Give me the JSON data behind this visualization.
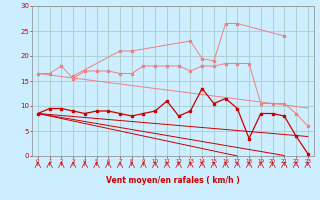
{
  "x": [
    0,
    1,
    2,
    3,
    4,
    5,
    6,
    7,
    8,
    9,
    10,
    11,
    12,
    13,
    14,
    15,
    16,
    17,
    18,
    19,
    20,
    21,
    22,
    23
  ],
  "line_light_flat": [
    16.5,
    16.5,
    18.0,
    15.5,
    17.0,
    17.0,
    17.0,
    16.5,
    16.5,
    18.0,
    18.0,
    18.0,
    18.0,
    17.0,
    18.0,
    18.0,
    18.5,
    18.5,
    18.5,
    10.5,
    10.5,
    10.5,
    8.5,
    6.0
  ],
  "line_light_spiky": [
    null,
    null,
    null,
    16.0,
    null,
    null,
    null,
    21.0,
    21.0,
    null,
    null,
    null,
    null,
    23.0,
    19.5,
    19.0,
    26.5,
    26.5,
    null,
    null,
    null,
    24.0,
    null,
    null
  ],
  "line_light_slope": [
    16.5,
    16.2,
    15.9,
    15.6,
    15.3,
    15.0,
    14.7,
    14.4,
    14.1,
    13.8,
    13.5,
    13.2,
    12.9,
    12.6,
    12.3,
    12.0,
    11.7,
    11.4,
    11.1,
    10.8,
    10.5,
    10.2,
    9.9,
    9.6
  ],
  "line_dark_main": [
    8.5,
    9.5,
    9.5,
    9.0,
    8.5,
    9.0,
    9.0,
    8.5,
    8.0,
    8.5,
    9.0,
    11.0,
    8.0,
    9.0,
    13.5,
    10.5,
    11.5,
    9.5,
    3.5,
    8.5,
    8.5,
    8.0,
    4.0,
    0.5
  ],
  "line_dark_slope1": [
    8.5,
    8.3,
    8.1,
    7.9,
    7.7,
    7.5,
    7.3,
    7.1,
    6.9,
    6.7,
    6.5,
    6.3,
    6.1,
    5.9,
    5.7,
    5.5,
    5.3,
    5.1,
    4.9,
    4.7,
    4.5,
    4.3,
    4.1,
    3.9
  ],
  "line_dark_slope2": [
    8.5,
    8.1,
    7.7,
    7.3,
    6.9,
    6.5,
    6.1,
    5.7,
    5.3,
    4.9,
    4.5,
    4.1,
    3.7,
    3.3,
    2.9,
    2.5,
    2.1,
    1.7,
    1.3,
    0.9,
    0.5,
    0.1,
    null,
    null
  ],
  "line_dark_slope3": [
    8.5,
    8.0,
    7.5,
    7.0,
    6.5,
    6.0,
    5.5,
    5.0,
    4.5,
    4.0,
    3.5,
    3.0,
    2.5,
    2.0,
    1.5,
    1.0,
    0.5,
    0.0,
    null,
    null,
    null,
    null,
    null,
    null
  ],
  "color_light": "#f08080",
  "color_dark": "#cc0000",
  "bg_color": "#cceeff",
  "grid_color": "#aacccc",
  "xlabel": "Vent moyen/en rafales ( km/h )",
  "ylim": [
    0,
    30
  ],
  "xlim": [
    -0.5,
    23.5
  ],
  "yticks": [
    0,
    5,
    10,
    15,
    20,
    25,
    30
  ],
  "xticks": [
    0,
    1,
    2,
    3,
    4,
    5,
    6,
    7,
    8,
    9,
    10,
    11,
    12,
    13,
    14,
    15,
    16,
    17,
    18,
    19,
    20,
    21,
    22,
    23
  ]
}
